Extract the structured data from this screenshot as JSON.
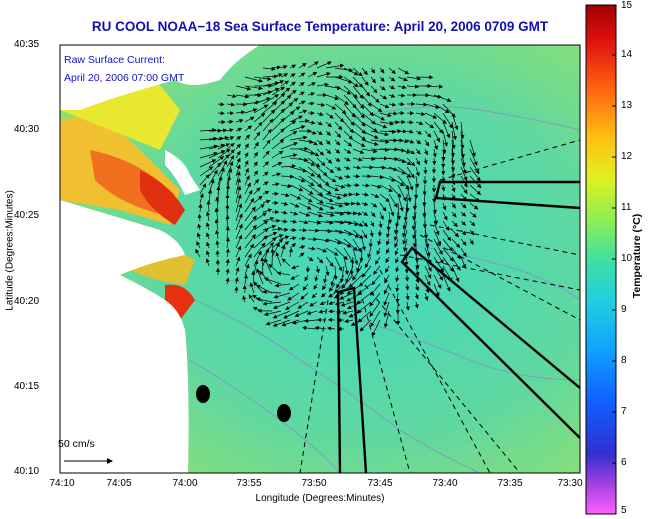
{
  "title": "RU COOL  NOAA−18  Sea Surface Temperature:  April 20, 2006 0709 GMT",
  "legend": {
    "line1": "Raw Surface Current:",
    "line2": "April 20, 2006 07:00 GMT"
  },
  "scale_label": "50 cm/s",
  "axes": {
    "xlabel": "Longitude (Degrees:Minutes)",
    "ylabel": "Latitude (Degrees:Minutes)",
    "xticks": [
      "74:10",
      "74:05",
      "74:00",
      "73:55",
      "73:50",
      "73:45",
      "73:40",
      "73:35",
      "73:30"
    ],
    "yticks": [
      "40:35",
      "40:30",
      "40:25",
      "40:20",
      "40:15",
      "40:10"
    ]
  },
  "colorbar": {
    "label": "Temperature (°C)",
    "ticks": [
      "15",
      "14",
      "13",
      "12",
      "11",
      "10",
      "9",
      "8",
      "7",
      "6",
      "5"
    ]
  },
  "colors": {
    "title": "#1010b0",
    "legend": "#1010c8",
    "land": "#ffffff",
    "sea": "#6cd18d"
  }
}
